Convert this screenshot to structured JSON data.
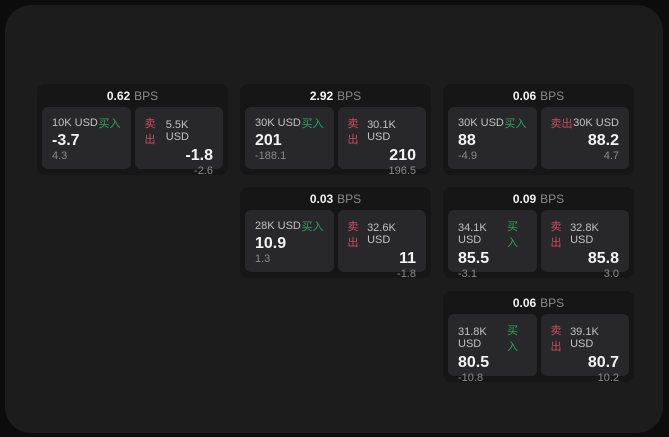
{
  "colors": {
    "page_background": "#0c0c0d",
    "panel_background": "#1c1c1d",
    "card_bg": "#161617",
    "subpanel_bg": "#28282a",
    "buy_green": "#2fa35f",
    "sell_red": "#cc4a67",
    "text_primary": "#f3f3f3",
    "text_secondary": "#c2c2c2",
    "text_muted": "#8a8a8a"
  },
  "labels": {
    "bps": "BPS",
    "buy": "买入",
    "sell": "卖出"
  },
  "cards": [
    {
      "bps": "0.62",
      "buy": {
        "amount": "10K USD",
        "price": "-3.7",
        "delta": "4.3"
      },
      "sell": {
        "amount": "5.5K USD",
        "price": "-1.8",
        "delta": "-2.6"
      }
    },
    {
      "bps": "2.92",
      "buy": {
        "amount": "30K USD",
        "price": "201",
        "delta": "-188.1"
      },
      "sell": {
        "amount": "30.1K USD",
        "price": "210",
        "delta": "196.5"
      }
    },
    {
      "bps": "0.06",
      "buy": {
        "amount": "30K USD",
        "price": "88",
        "delta": "-4.9"
      },
      "sell": {
        "amount": "30K USD",
        "price": "88.2",
        "delta": "4.7"
      }
    },
    {
      "bps": "0.03",
      "buy": {
        "amount": "28K USD",
        "price": "10.9",
        "delta": "1.3"
      },
      "sell": {
        "amount": "32.6K USD",
        "price": "11",
        "delta": "-1.8"
      }
    },
    {
      "bps": "0.09",
      "buy": {
        "amount": "34.1K USD",
        "price": "85.5",
        "delta": "-3.1"
      },
      "sell": {
        "amount": "32.8K USD",
        "price": "85.8",
        "delta": "3.0"
      }
    },
    {
      "bps": "0.06",
      "buy": {
        "amount": "31.8K USD",
        "price": "80.5",
        "delta": "-10.8"
      },
      "sell": {
        "amount": "39.1K USD",
        "price": "80.7",
        "delta": "10.2"
      }
    }
  ]
}
